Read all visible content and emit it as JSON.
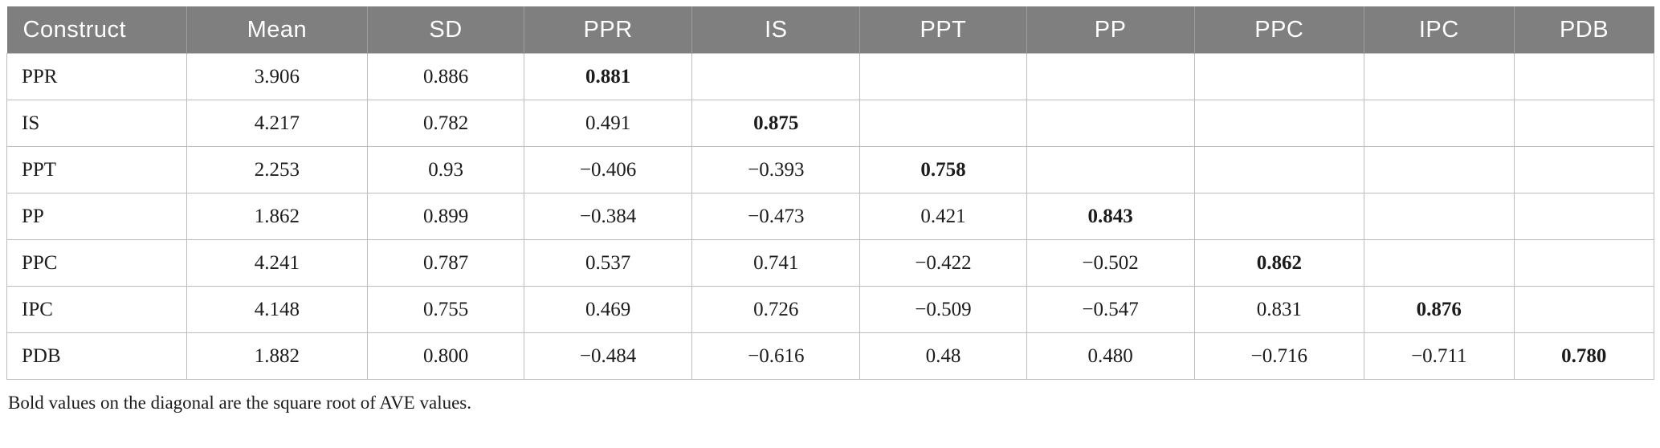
{
  "table": {
    "columns": [
      "Construct",
      "Mean",
      "SD",
      "PPR",
      "IS",
      "PPT",
      "PP",
      "PPC",
      "IPC",
      "PDB"
    ],
    "rows": [
      {
        "cells": [
          "PPR",
          "3.906",
          "0.886",
          "0.881",
          "",
          "",
          "",
          "",
          "",
          ""
        ],
        "bold_index": 3
      },
      {
        "cells": [
          "IS",
          "4.217",
          "0.782",
          "0.491",
          "0.875",
          "",
          "",
          "",
          "",
          ""
        ],
        "bold_index": 4
      },
      {
        "cells": [
          "PPT",
          "2.253",
          "0.93",
          "−0.406",
          "−0.393",
          "0.758",
          "",
          "",
          "",
          ""
        ],
        "bold_index": 5
      },
      {
        "cells": [
          "PP",
          "1.862",
          "0.899",
          "−0.384",
          "−0.473",
          "0.421",
          "0.843",
          "",
          "",
          ""
        ],
        "bold_index": 6
      },
      {
        "cells": [
          "PPC",
          "4.241",
          "0.787",
          "0.537",
          "0.741",
          "−0.422",
          "−0.502",
          "0.862",
          "",
          ""
        ],
        "bold_index": 7
      },
      {
        "cells": [
          "IPC",
          "4.148",
          "0.755",
          "0.469",
          "0.726",
          "−0.509",
          "−0.547",
          "0.831",
          "0.876",
          ""
        ],
        "bold_index": 8
      },
      {
        "cells": [
          "PDB",
          "1.882",
          "0.800",
          "−0.484",
          "−0.616",
          "0.48",
          "0.480",
          "−0.716",
          "−0.711",
          "0.780"
        ],
        "bold_index": 9
      }
    ],
    "footnote": "Bold values on the diagonal are the square root of AVE values."
  },
  "colors": {
    "header_background": "#7f7f7f",
    "header_text": "#ffffff",
    "header_divider": "#9d9d9d",
    "body_border": "#bdbdbd",
    "body_text": "#1c1c1c",
    "page_background": "#ffffff"
  }
}
